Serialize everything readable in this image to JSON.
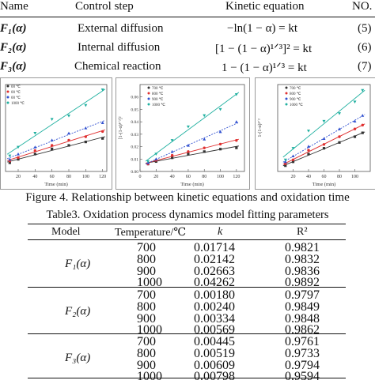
{
  "kinetics_table": {
    "headers": {
      "name": "Name",
      "step": "Control step",
      "equation": "Kinetic equation",
      "no": "NO."
    },
    "rows": [
      {
        "name": "F₁(α)",
        "step": "External diffusion",
        "equation": "−ln(1 − α) = kt",
        "no": "(5)"
      },
      {
        "name": "F₂(α)",
        "step": "Internal diffusion",
        "equation": "[1 − (1 − α)¹ᐟ³]² = kt",
        "no": "(6)"
      },
      {
        "name": "F₃(α)",
        "step": "Chemical reaction",
        "equation": "1 − (1 − α)¹ᐟ³ = kt",
        "no": "(7)"
      }
    ]
  },
  "figure_caption": "Figure 4. Relationship between kinetic equations and oxidation time",
  "chart_data": [
    {
      "type": "scatter",
      "xlabel": "Time (min)",
      "ylabel": "",
      "x_ticks": [
        "20",
        "40",
        "60",
        "80",
        "100",
        "120"
      ],
      "legend": [
        "00 ℃",
        "00 ℃",
        "00 ℃",
        "1000 ℃"
      ],
      "series": [
        {
          "name": "00 ℃",
          "color": "#333333",
          "x": [
            10,
            20,
            40,
            60,
            80,
            100,
            120
          ],
          "y": [
            0.05,
            0.07,
            0.1,
            0.13,
            0.15,
            0.17,
            0.19
          ]
        },
        {
          "name": "00 ℃",
          "color": "#e03030",
          "x": [
            10,
            20,
            40,
            60,
            80,
            100,
            120
          ],
          "y": [
            0.06,
            0.08,
            0.12,
            0.15,
            0.18,
            0.2,
            0.23
          ]
        },
        {
          "name": "00 ℃",
          "color": "#3050d0",
          "x": [
            10,
            20,
            40,
            60,
            80,
            100,
            120
          ],
          "y": [
            0.07,
            0.1,
            0.14,
            0.18,
            0.22,
            0.25,
            0.28
          ]
        },
        {
          "name": "1000 ℃",
          "color": "#20b0a0",
          "x": [
            10,
            20,
            40,
            60,
            80,
            100,
            120
          ],
          "y": [
            0.09,
            0.14,
            0.22,
            0.3,
            0.32,
            0.38,
            0.47
          ]
        }
      ]
    },
    {
      "type": "scatter",
      "xlabel": "Time (min)",
      "ylabel": "[1-(1-α)¹ᐟ³]²",
      "x_ticks": [
        "0",
        "20",
        "40",
        "60",
        "80",
        "100",
        "120"
      ],
      "y_ticks": [
        "0.00",
        "0.01",
        "0.02",
        "0.03",
        "0.04",
        "0.05",
        "0.06"
      ],
      "legend": [
        "700 ℃",
        "800 ℃",
        "900 ℃",
        "1000 ℃"
      ],
      "series": [
        {
          "name": "700 ℃",
          "color": "#333333",
          "x": [
            10,
            20,
            40,
            60,
            80,
            100,
            120
          ],
          "y": [
            0.006,
            0.008,
            0.011,
            0.014,
            0.016,
            0.018,
            0.019
          ]
        },
        {
          "name": "800 ℃",
          "color": "#e03030",
          "x": [
            10,
            20,
            40,
            60,
            80,
            100,
            120
          ],
          "y": [
            0.006,
            0.009,
            0.013,
            0.016,
            0.019,
            0.022,
            0.025
          ]
        },
        {
          "name": "900 ℃",
          "color": "#3050d0",
          "x": [
            10,
            20,
            40,
            60,
            80,
            100,
            120
          ],
          "y": [
            0.007,
            0.01,
            0.016,
            0.021,
            0.026,
            0.032,
            0.04
          ]
        },
        {
          "name": "1000 ℃",
          "color": "#20b0a0",
          "x": [
            10,
            20,
            40,
            60,
            80,
            100,
            120
          ],
          "y": [
            0.008,
            0.014,
            0.025,
            0.036,
            0.045,
            0.05,
            0.062
          ]
        }
      ]
    },
    {
      "type": "scatter",
      "xlabel": "Time (min)",
      "ylabel": "1-(1-α)¹ᐟ³",
      "x_ticks": [
        "20",
        "40",
        "60",
        "80",
        "100"
      ],
      "legend": [
        "700 ℃",
        "800 ℃",
        "900 ℃",
        "1000 ℃"
      ],
      "series": [
        {
          "name": "700 ℃",
          "color": "#333333",
          "x": [
            10,
            20,
            40,
            60,
            80,
            100,
            110
          ],
          "y": [
            0.03,
            0.05,
            0.09,
            0.12,
            0.15,
            0.18,
            0.2
          ]
        },
        {
          "name": "800 ℃",
          "color": "#e03030",
          "x": [
            10,
            20,
            40,
            60,
            80,
            100,
            110
          ],
          "y": [
            0.04,
            0.06,
            0.11,
            0.14,
            0.18,
            0.22,
            0.24
          ]
        },
        {
          "name": "900 ℃",
          "color": "#3050d0",
          "x": [
            10,
            20,
            40,
            60,
            80,
            100,
            110
          ],
          "y": [
            0.05,
            0.08,
            0.13,
            0.17,
            0.22,
            0.26,
            0.29
          ]
        },
        {
          "name": "1000 ℃",
          "color": "#20b0a0",
          "x": [
            10,
            20,
            40,
            60,
            80,
            100,
            110
          ],
          "y": [
            0.06,
            0.12,
            0.21,
            0.26,
            0.3,
            0.36,
            0.42
          ]
        }
      ]
    }
  ],
  "param_table": {
    "title": "Table3. Oxidation process dynamics model fitting parameters",
    "headers": {
      "model": "Model",
      "temperature": "Temperature/℃",
      "k": "k",
      "r2": "R²"
    },
    "groups": [
      {
        "model": "F₁(α)",
        "rows": [
          {
            "t": "700",
            "k": "0.01714",
            "r2": "0.9821"
          },
          {
            "t": "800",
            "k": "0.02142",
            "r2": "0.9832"
          },
          {
            "t": "900",
            "k": "0.02663",
            "r2": "0.9836"
          },
          {
            "t": "1000",
            "k": "0.04262",
            "r2": "0.9892"
          }
        ]
      },
      {
        "model": "F₂(α)",
        "rows": [
          {
            "t": "700",
            "k": "0.00180",
            "r2": "0.9797"
          },
          {
            "t": "800",
            "k": "0.00240",
            "r2": "0.9849"
          },
          {
            "t": "900",
            "k": "0.00334",
            "r2": "0.9848"
          },
          {
            "t": "1000",
            "k": "0.00569",
            "r2": "0.9862"
          }
        ]
      },
      {
        "model": "F₃(α)",
        "rows": [
          {
            "t": "700",
            "k": "0.00445",
            "r2": "0.9761"
          },
          {
            "t": "800",
            "k": "0.00519",
            "r2": "0.9733"
          },
          {
            "t": "900",
            "k": "0.00609",
            "r2": "0.9794"
          },
          {
            "t": "1000",
            "k": "0.00798",
            "r2": "0.9594"
          }
        ]
      }
    ]
  }
}
